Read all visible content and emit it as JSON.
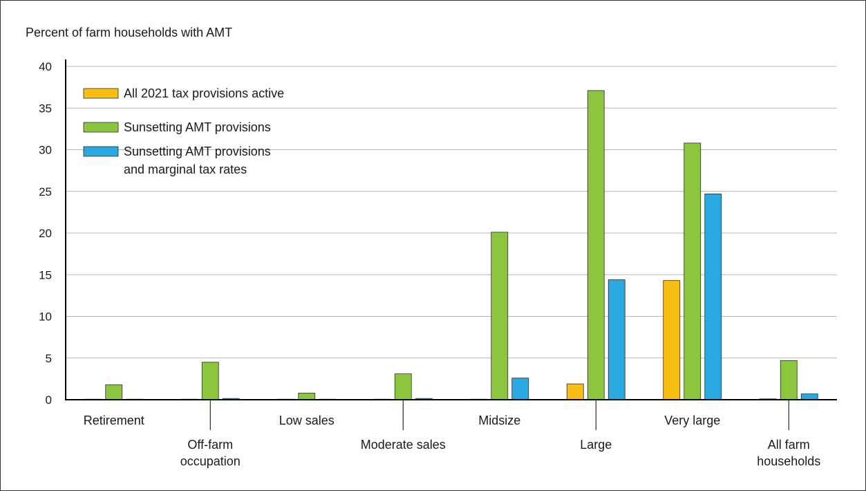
{
  "chart_data": {
    "type": "bar",
    "title": "Percent of farm households with AMT",
    "xlabel": "",
    "ylabel": "",
    "ylim": [
      0,
      40
    ],
    "yticks": [
      0,
      5,
      10,
      15,
      20,
      25,
      30,
      35,
      40
    ],
    "grid": true,
    "legend_position": "top-left",
    "categories": [
      [
        "Retirement"
      ],
      [
        "Off-farm",
        "occupation"
      ],
      [
        "Low sales"
      ],
      [
        "Moderate sales"
      ],
      [
        "Midsize"
      ],
      [
        "Large"
      ],
      [
        "Very large"
      ],
      [
        "All farm",
        "households"
      ]
    ],
    "series": [
      {
        "name": [
          "All 2021 tax provisions active"
        ],
        "color": "#f9be12",
        "values": [
          0,
          0,
          0,
          0,
          0,
          1.9,
          14.3,
          0.1
        ]
      },
      {
        "name": [
          "Sunsetting AMT provisions"
        ],
        "color": "#8cc63e",
        "values": [
          1.8,
          4.5,
          0.8,
          3.1,
          20.1,
          37.1,
          30.8,
          4.7
        ]
      },
      {
        "name": [
          "Sunsetting AMT provisions",
          "and marginal tax rates"
        ],
        "color": "#29a9e1",
        "values": [
          0,
          0.15,
          0,
          0.15,
          2.6,
          14.4,
          24.7,
          0.7
        ]
      }
    ]
  }
}
